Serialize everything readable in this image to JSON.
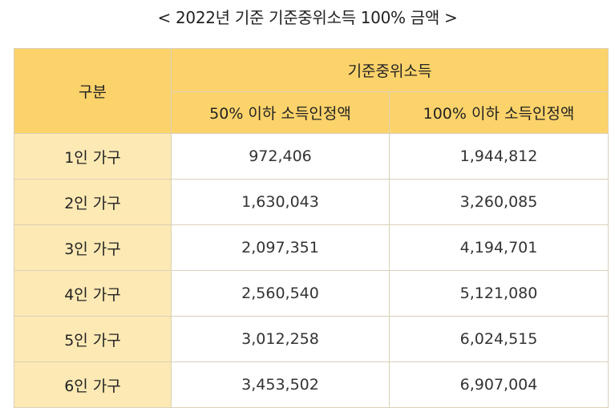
{
  "title": "< 2022년 기준 기준중위소득 100% 금액 >",
  "table": {
    "header": {
      "category": "구분",
      "group": "기준중위소득",
      "col1": "50% 이하 소득인정액",
      "col2": "100% 이하 소득인정액"
    },
    "rows": [
      {
        "label": "1인 가구",
        "v50": "972,406",
        "v100": "1,944,812"
      },
      {
        "label": "2인 가구",
        "v50": "1,630,043",
        "v100": "3,260,085"
      },
      {
        "label": "3인 가구",
        "v50": "2,097,351",
        "v100": "4,194,701"
      },
      {
        "label": "4인 가구",
        "v50": "2,560,540",
        "v100": "5,121,080"
      },
      {
        "label": "5인 가구",
        "v50": "3,012,258",
        "v100": "6,024,515"
      },
      {
        "label": "6인 가구",
        "v50": "3,453,502",
        "v100": "6,907,004"
      }
    ]
  },
  "colors": {
    "header_bg": "#fcd36b",
    "label_bg": "#fde9b4",
    "border": "#d9d0b8"
  }
}
